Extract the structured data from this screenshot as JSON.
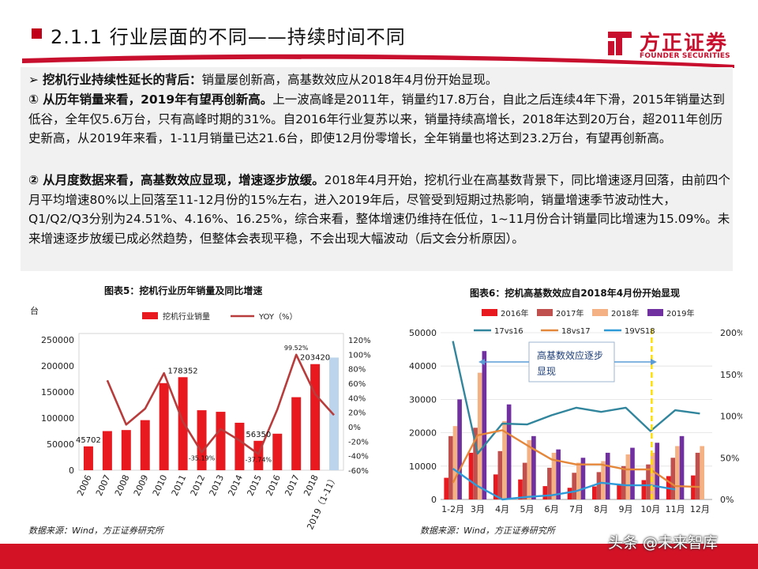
{
  "header": {
    "title": "2.1.1 行业层面的不同——持续时间不同",
    "logo_cn": "方正证券",
    "logo_en": "FOUNDER SECURITIES"
  },
  "text": {
    "p1_mark": "➢",
    "p1_bold": "挖机行业持续性延长的背后：",
    "p1_rest": "销量屡创新高，高基数效应从2018年4月份开始显现。",
    "p2_mark": "①",
    "p2_bold": "从历年销量来看，2019年有望再创新高。",
    "p2_rest": "上一波高峰是2011年，销量约17.8万台，自此之后连续4年下滑，2015年销量达到低谷，全年仅5.6万台，只有高峰时期的31%。自2016年行业复苏以来，销量持续高增长，2018年达到20万台，超2011年创历史新高，从2019年来看，1-11月销量已达21.6台，即使12月份零增长，全年销量也将达到23.2万台，有望再创新高。",
    "p3_mark": "②",
    "p3_bold": "从月度数据来看，高基数效应显现，增速逐步放缓。",
    "p3_rest": "2018年4月开始，挖机行业在高基数背景下，同比增速逐月回落，由前四个月平均增速80%以上回落至11-12月份的15%左右，进入2019年后，尽管受到短期过热影响，销量增速季节波动性大，Q1/Q2/Q3分别为24.51%、4.16%、16.25%，综合来看，整体增速仍维持在低位，1~11月份合计销量同比增速为15.09%。未来增速逐步放缓已成必然趋势，但整体会表现平稳，不会出现大幅波动（后文会分析原因）。"
  },
  "chart5_title": "图表5：挖机行业历年销量及同比增速",
  "chart6_title": "图表6：挖机高基数效应自2018年4月份开始显现",
  "source5": "数据来源：Wind，方正证券研究所",
  "source6": "数据来源：Wind，方正证券研究所",
  "watermark": "头条 @未来智库",
  "colors": {
    "brand_red": "#c8102e",
    "bar_red": "#e8191f",
    "line_red": "#b83c3c",
    "bar_blue": "#bcd5ec"
  },
  "chart_data": [
    {
      "type": "bar",
      "unit_label": "台",
      "categories": [
        "2006",
        "2007",
        "2008",
        "2009",
        "2010",
        "2011",
        "2012",
        "2013",
        "2014",
        "2015",
        "2016",
        "2017",
        "2018",
        "2019（1-11）"
      ],
      "legend": [
        "挖机行业销量",
        "YOY（%）"
      ],
      "series": [
        {
          "name": "挖机行业销量",
          "axis": "left",
          "values": [
            45702,
            75000,
            77000,
            96000,
            167000,
            178352,
            115000,
            112000,
            91000,
            56350,
            70000,
            140000,
            203420,
            216000
          ]
        },
        {
          "name": "YOY（%）",
          "axis": "right",
          "values": [
            null,
            64,
            3,
            25,
            74,
            7,
            -35.19,
            -3,
            -19,
            -37.74,
            24,
            99.52,
            45,
            16
          ]
        }
      ],
      "data_labels": [
        {
          "category": "2006",
          "text": "45702"
        },
        {
          "category": "2011",
          "text": "178352"
        },
        {
          "category": "2012",
          "text": "-35.19%"
        },
        {
          "category": "2015",
          "text": "56350"
        },
        {
          "category": "2015",
          "text": "-37.74%"
        },
        {
          "category": "2017",
          "text": "99.52%"
        },
        {
          "category": "2018",
          "text": "203420"
        }
      ],
      "ylim_left": [
        0,
        250000
      ],
      "yticks_left": [
        "0",
        "50000",
        "100000",
        "150000",
        "200000",
        "250000"
      ],
      "ylim_right": [
        -60,
        120
      ],
      "yticks_right": [
        "-60%",
        "-40%",
        "-20%",
        "0%",
        "20%",
        "40%",
        "60%",
        "80%",
        "100%",
        "120%"
      ],
      "grid": false,
      "legend_position": "top"
    },
    {
      "type": "bar",
      "categories": [
        "1-2月",
        "3月",
        "4月",
        "5月",
        "6月",
        "7月",
        "8月",
        "9月",
        "10月",
        "11月",
        "12月"
      ],
      "legend": [
        "2016年",
        "2017年",
        "2018年",
        "2019年",
        "17vs16",
        "18vs17",
        "19VS18"
      ],
      "series": [
        {
          "name": "2016年",
          "axis": "left",
          "values": [
            6500,
            14000,
            7500,
            6000,
            4000,
            3500,
            3900,
            4500,
            5800,
            7000,
            7200
          ]
        },
        {
          "name": "2017年",
          "axis": "left",
          "values": [
            19000,
            21500,
            14500,
            11000,
            9500,
            8000,
            8200,
            10000,
            10500,
            12500,
            14000
          ]
        },
        {
          "name": "2018年",
          "axis": "left",
          "values": [
            22000,
            38000,
            23500,
            17800,
            14000,
            11000,
            11500,
            13500,
            14000,
            16000,
            16000
          ]
        },
        {
          "name": "2019年",
          "axis": "left",
          "values": [
            30000,
            44500,
            28500,
            19000,
            15000,
            12500,
            14000,
            15500,
            17000,
            19000,
            null
          ]
        },
        {
          "name": "17vs16",
          "axis": "right",
          "values": [
            190,
            55,
            91,
            90,
            101,
            110,
            105,
            110,
            82,
            107,
            103
          ]
        },
        {
          "name": "18vs17",
          "axis": "right",
          "values": [
            20,
            77,
            83,
            65,
            48,
            42,
            42,
            36,
            36,
            16,
            15
          ]
        },
        {
          "name": "19VS18",
          "axis": "right",
          "values": [
            37,
            16,
            -12,
            3,
            5,
            10,
            20,
            17,
            17,
            12,
            null
          ]
        }
      ],
      "ylim_left": [
        0,
        50000
      ],
      "yticks_left": [
        "0",
        "10000",
        "20000",
        "30000",
        "40000",
        "50000"
      ],
      "ylim_right": [
        0,
        200
      ],
      "yticks_right": [
        "0%",
        "50%",
        "100%",
        "150%",
        "200%"
      ],
      "annotation": "高基数效应逐步显现",
      "marker_line_at": "10月",
      "grid": true,
      "legend_position": "top"
    }
  ]
}
